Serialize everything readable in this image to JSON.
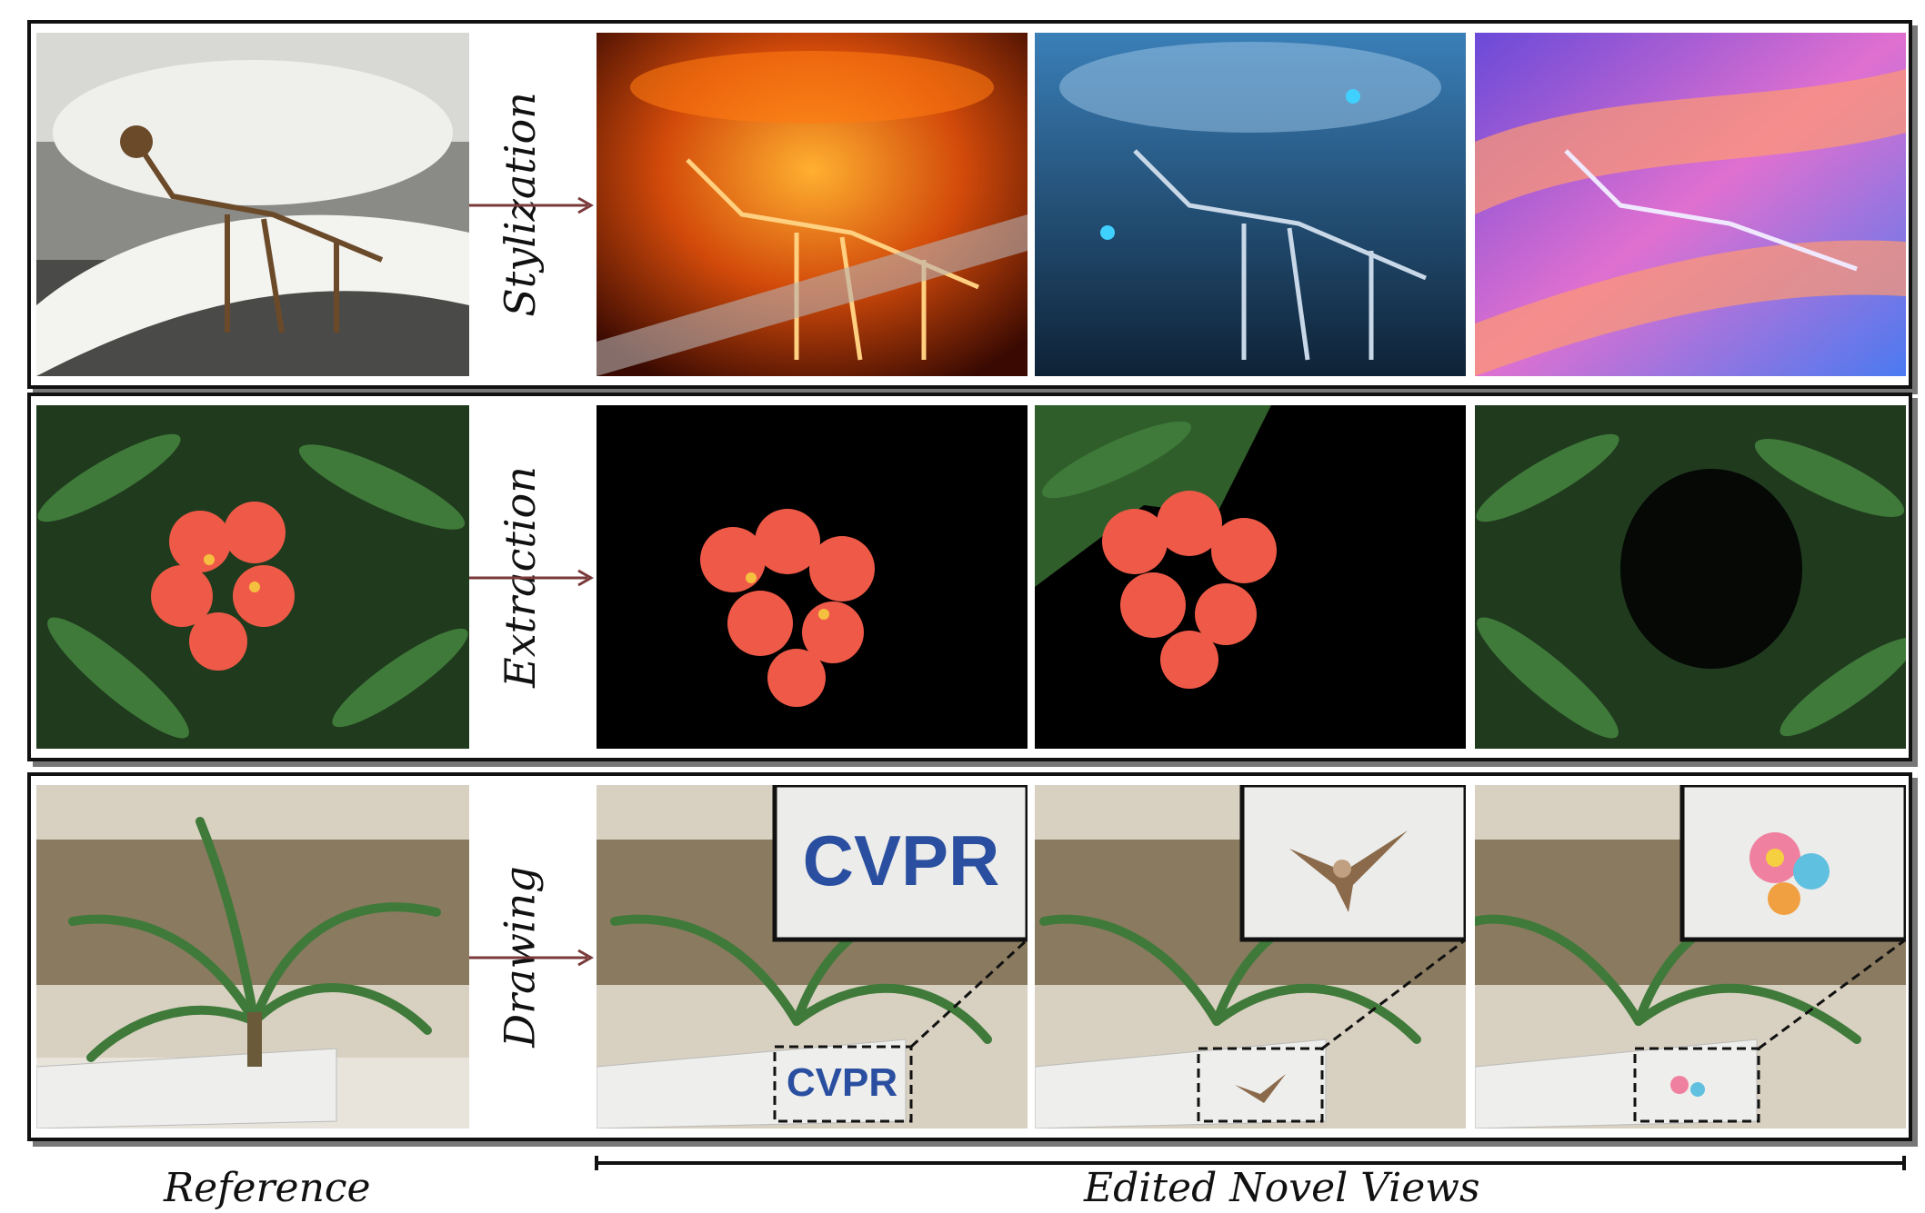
{
  "rows": [
    {
      "label": "Stylization"
    },
    {
      "label": "Extraction"
    },
    {
      "label": "Drawing"
    }
  ],
  "drawing_texts": {
    "sign_text": "CVPR"
  },
  "captions": {
    "reference": "Reference",
    "edited": "Edited Novel Views"
  }
}
